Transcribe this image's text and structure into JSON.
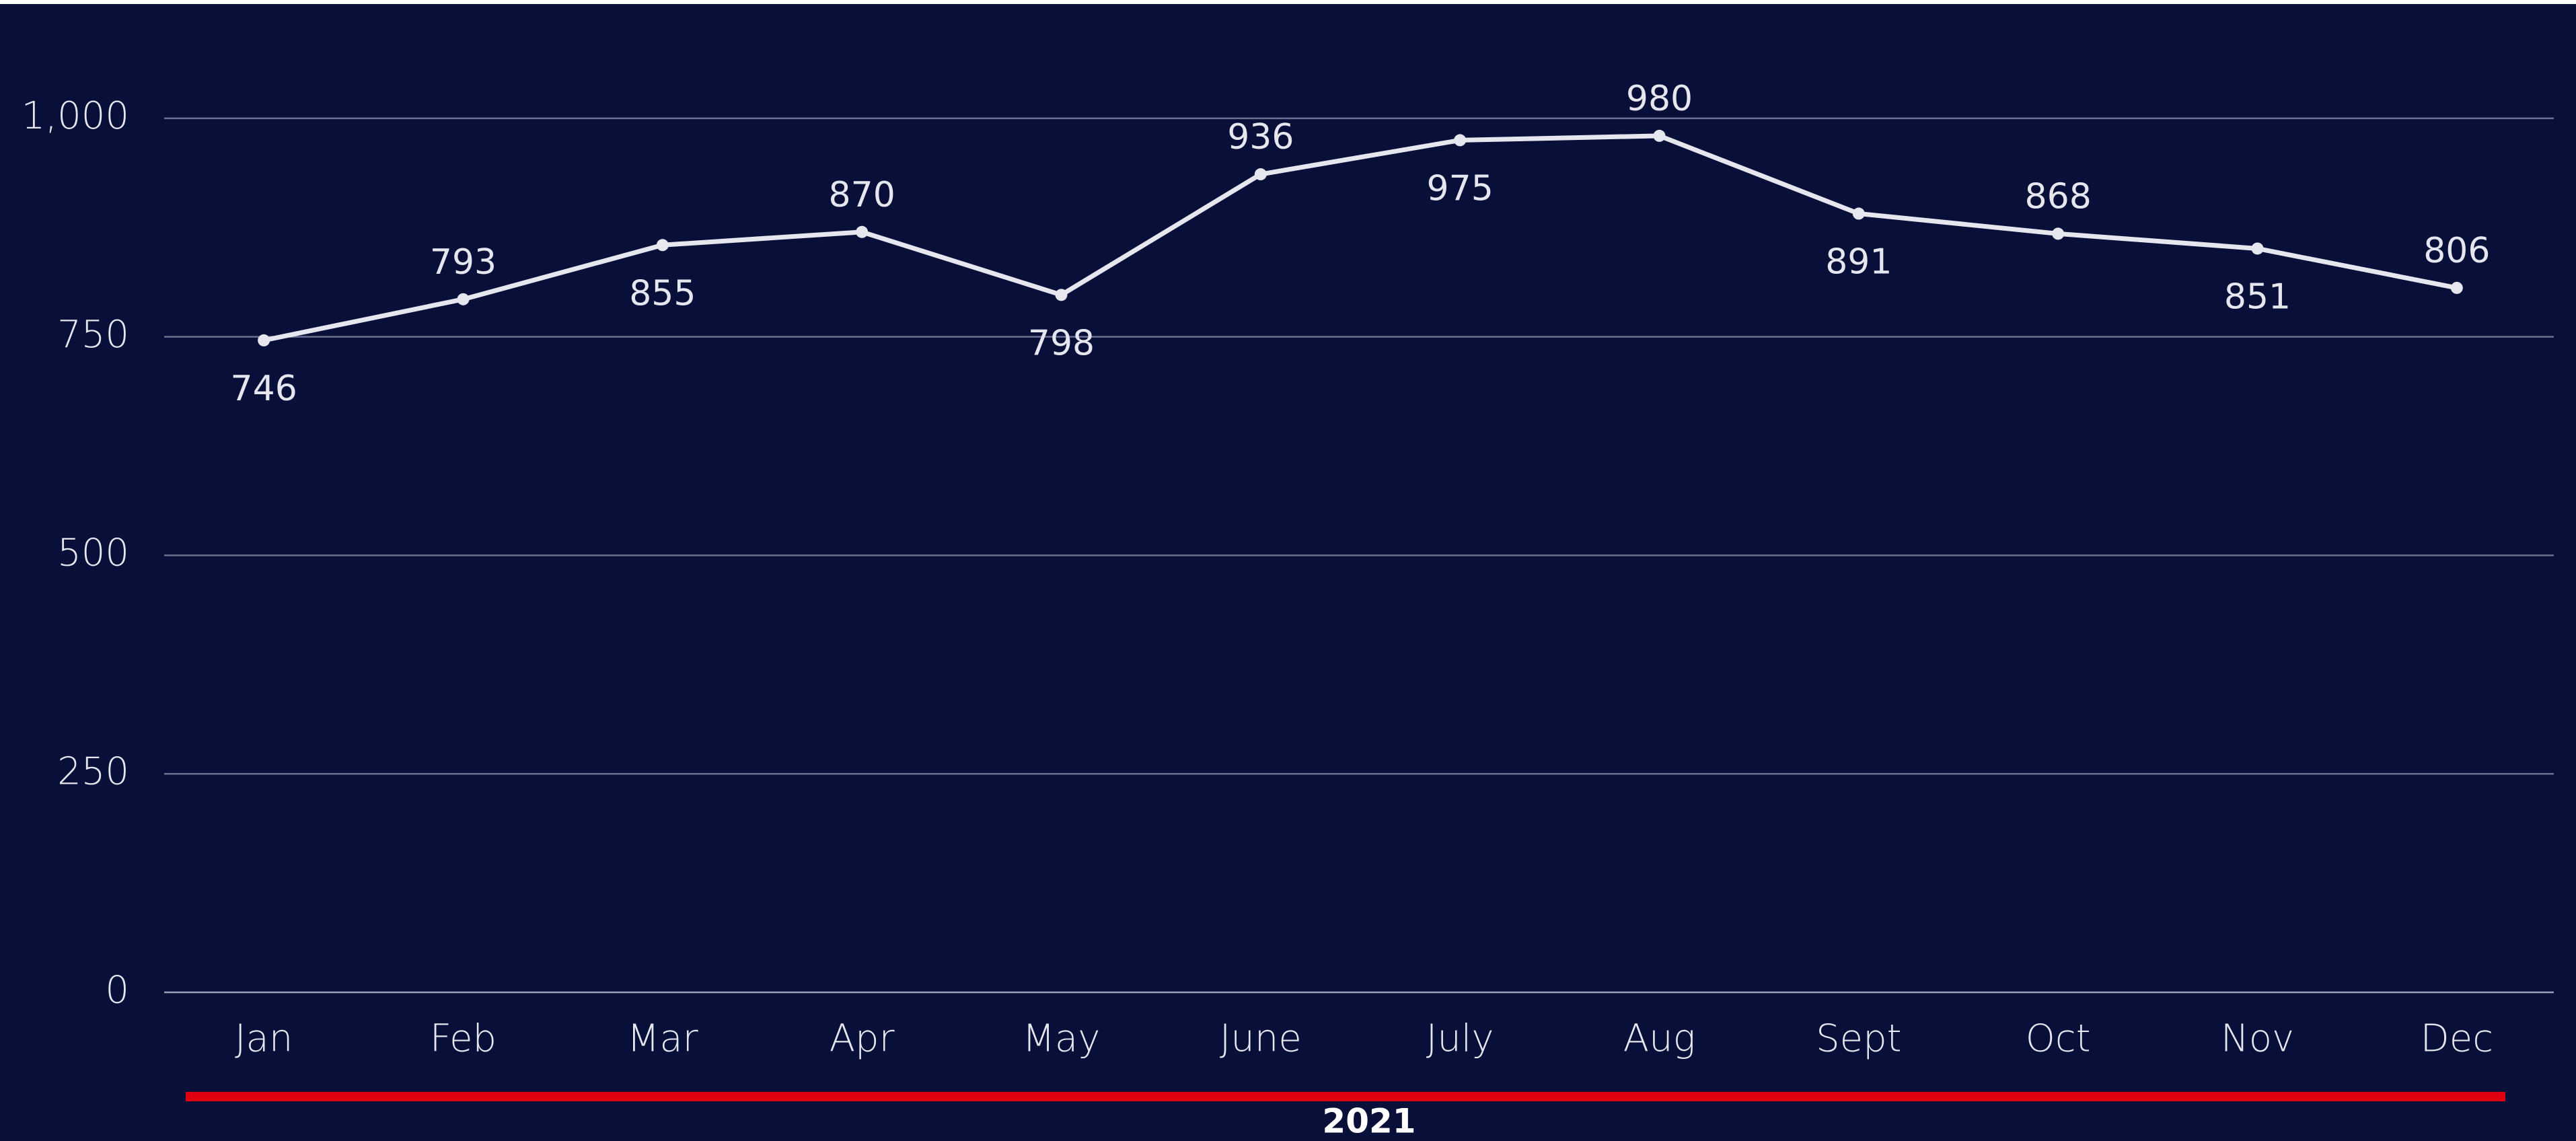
{
  "chart_data": {
    "type": "line",
    "categories": [
      "Jan",
      "Feb",
      "Mar",
      "Apr",
      "May",
      "June",
      "July",
      "Aug",
      "Sept",
      "Oct",
      "Nov",
      "Dec"
    ],
    "values": [
      746,
      793,
      855,
      870,
      798,
      936,
      975,
      980,
      891,
      868,
      851,
      806
    ],
    "color": "#e6e6ee",
    "ylim": [
      0,
      1100
    ],
    "yticks": [
      0,
      250,
      500,
      750,
      {
        "value": 1000,
        "label": "1,000"
      }
    ],
    "grid": true,
    "x_group_label": "2021",
    "x_group_color": "#e0000f"
  }
}
